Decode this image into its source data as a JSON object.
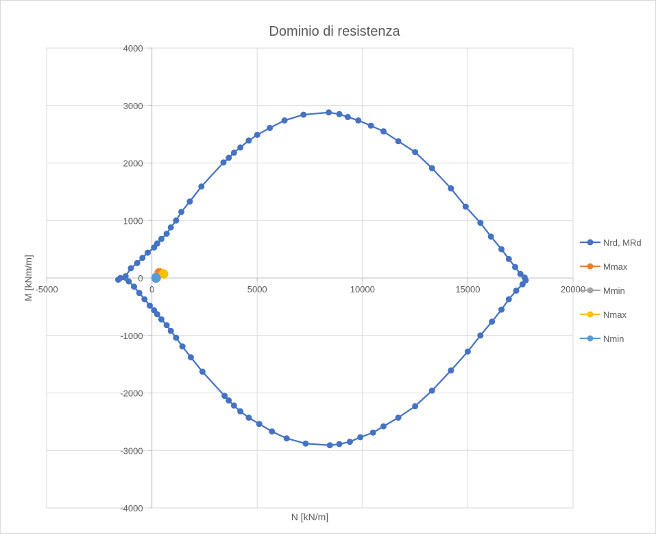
{
  "chart_data": {
    "type": "scatter",
    "title": "Dominio di resistenza",
    "xlabel": "N [kN/m]",
    "ylabel": "M [kNm/m]",
    "xlim": [
      -5000,
      20000
    ],
    "ylim": [
      -4000,
      4000
    ],
    "x_ticks": [
      -5000,
      0,
      5000,
      10000,
      15000,
      20000
    ],
    "y_ticks": [
      -4000,
      -3000,
      -2000,
      -1000,
      0,
      1000,
      2000,
      3000,
      4000
    ],
    "grid": true,
    "legend_position": "right",
    "series": [
      {
        "name": "Nrd, MRd",
        "color": "#4472c4",
        "line": true,
        "points": [
          [
            -1600,
            -30
          ],
          [
            -1250,
            30
          ],
          [
            -1000,
            170
          ],
          [
            -700,
            260
          ],
          [
            -450,
            350
          ],
          [
            -200,
            440
          ],
          [
            100,
            530
          ],
          [
            250,
            600
          ],
          [
            450,
            680
          ],
          [
            700,
            770
          ],
          [
            900,
            880
          ],
          [
            1150,
            1000
          ],
          [
            1400,
            1150
          ],
          [
            1800,
            1330
          ],
          [
            2350,
            1590
          ],
          [
            3400,
            2010
          ],
          [
            3650,
            2090
          ],
          [
            3900,
            2180
          ],
          [
            4200,
            2270
          ],
          [
            4600,
            2390
          ],
          [
            5000,
            2490
          ],
          [
            5600,
            2610
          ],
          [
            6300,
            2740
          ],
          [
            7200,
            2840
          ],
          [
            8400,
            2880
          ],
          [
            8900,
            2850
          ],
          [
            9300,
            2800
          ],
          [
            9800,
            2740
          ],
          [
            10400,
            2650
          ],
          [
            11000,
            2550
          ],
          [
            11700,
            2380
          ],
          [
            12500,
            2190
          ],
          [
            13300,
            1910
          ],
          [
            14200,
            1560
          ],
          [
            14900,
            1240
          ],
          [
            15600,
            960
          ],
          [
            16100,
            720
          ],
          [
            16600,
            500
          ],
          [
            16950,
            330
          ],
          [
            17250,
            190
          ],
          [
            17500,
            70
          ],
          [
            17700,
            10
          ],
          [
            17750,
            -40
          ],
          [
            17600,
            -110
          ],
          [
            17300,
            -220
          ],
          [
            16950,
            -370
          ],
          [
            16600,
            -550
          ],
          [
            16150,
            -760
          ],
          [
            15600,
            -1000
          ],
          [
            15000,
            -1280
          ],
          [
            14200,
            -1610
          ],
          [
            13300,
            -1960
          ],
          [
            12500,
            -2230
          ],
          [
            11700,
            -2430
          ],
          [
            11000,
            -2580
          ],
          [
            10500,
            -2690
          ],
          [
            9900,
            -2770
          ],
          [
            9400,
            -2850
          ],
          [
            8900,
            -2890
          ],
          [
            8450,
            -2910
          ],
          [
            7300,
            -2880
          ],
          [
            6400,
            -2790
          ],
          [
            5700,
            -2670
          ],
          [
            5100,
            -2540
          ],
          [
            4600,
            -2430
          ],
          [
            4200,
            -2320
          ],
          [
            3900,
            -2220
          ],
          [
            3650,
            -2130
          ],
          [
            3450,
            -2050
          ],
          [
            2400,
            -1630
          ],
          [
            1850,
            -1380
          ],
          [
            1450,
            -1190
          ],
          [
            1150,
            -1040
          ],
          [
            900,
            -920
          ],
          [
            700,
            -820
          ],
          [
            450,
            -720
          ],
          [
            250,
            -630
          ],
          [
            100,
            -560
          ],
          [
            -100,
            -480
          ],
          [
            -350,
            -370
          ],
          [
            -600,
            -260
          ],
          [
            -850,
            -150
          ],
          [
            -1100,
            -60
          ],
          [
            -1500,
            0
          ]
        ]
      },
      {
        "name": "Mmax",
        "color": "#ed7d31",
        "line": false,
        "points": [
          [
            350,
            90
          ]
        ]
      },
      {
        "name": "Mmin",
        "color": "#a5a5a5",
        "line": false,
        "points": [
          [
            200,
            10
          ]
        ]
      },
      {
        "name": "Nmax",
        "color": "#ffc000",
        "line": false,
        "points": [
          [
            550,
            70
          ]
        ]
      },
      {
        "name": "Nmin",
        "color": "#5b9bd5",
        "line": false,
        "points": [
          [
            200,
            0
          ]
        ]
      }
    ]
  }
}
